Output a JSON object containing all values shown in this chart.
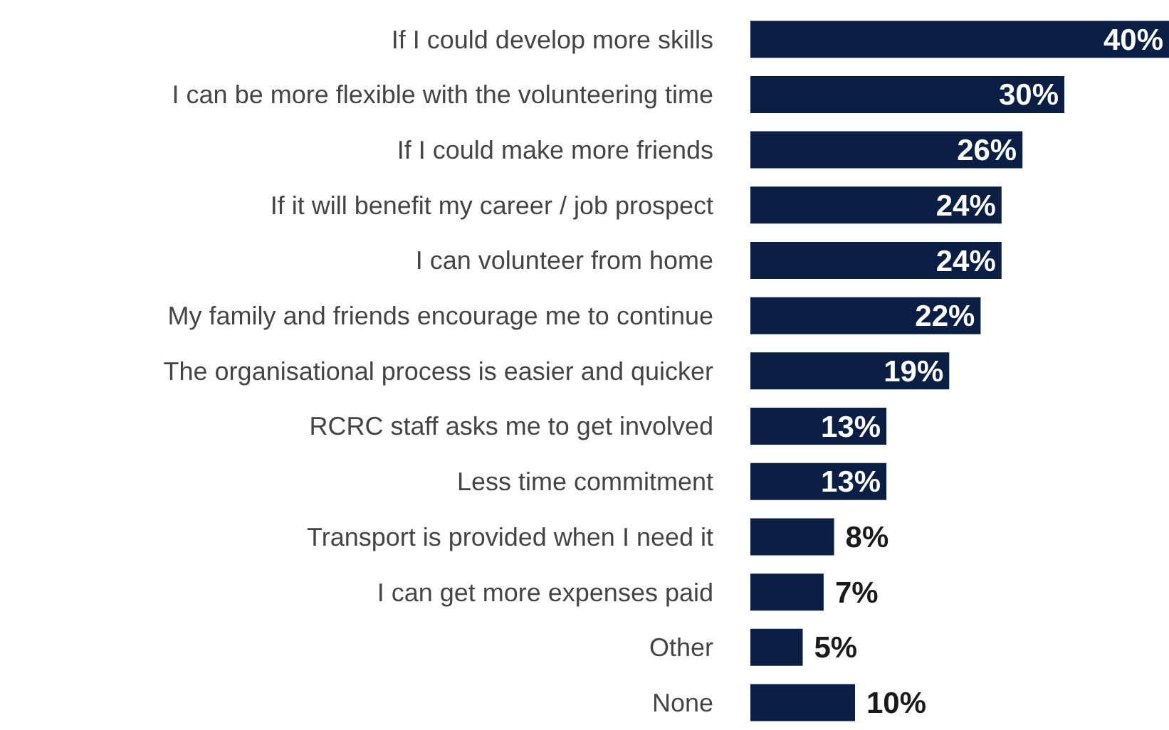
{
  "chart_data": {
    "type": "bar",
    "orientation": "horizontal",
    "categories": [
      "If I could develop more skills",
      "I can be more flexible with the volunteering time",
      "If I could make more friends",
      "If it will benefit my career / job prospect",
      "I can volunteer from home",
      "My family and friends encourage me to continue",
      "The organisational process is easier and quicker",
      "RCRC staff asks me to get involved",
      "Less time commitment",
      "Transport is provided when I need it",
      "I can get more expenses paid",
      "Other",
      "None"
    ],
    "values": [
      40,
      30,
      26,
      24,
      24,
      22,
      19,
      13,
      13,
      8,
      7,
      5,
      10
    ],
    "value_labels": [
      "40%",
      "30%",
      "26%",
      "24%",
      "24%",
      "22%",
      "19%",
      "13%",
      "13%",
      "8%",
      "7%",
      "5%",
      "10%"
    ],
    "color": "#0b1f44"
  }
}
